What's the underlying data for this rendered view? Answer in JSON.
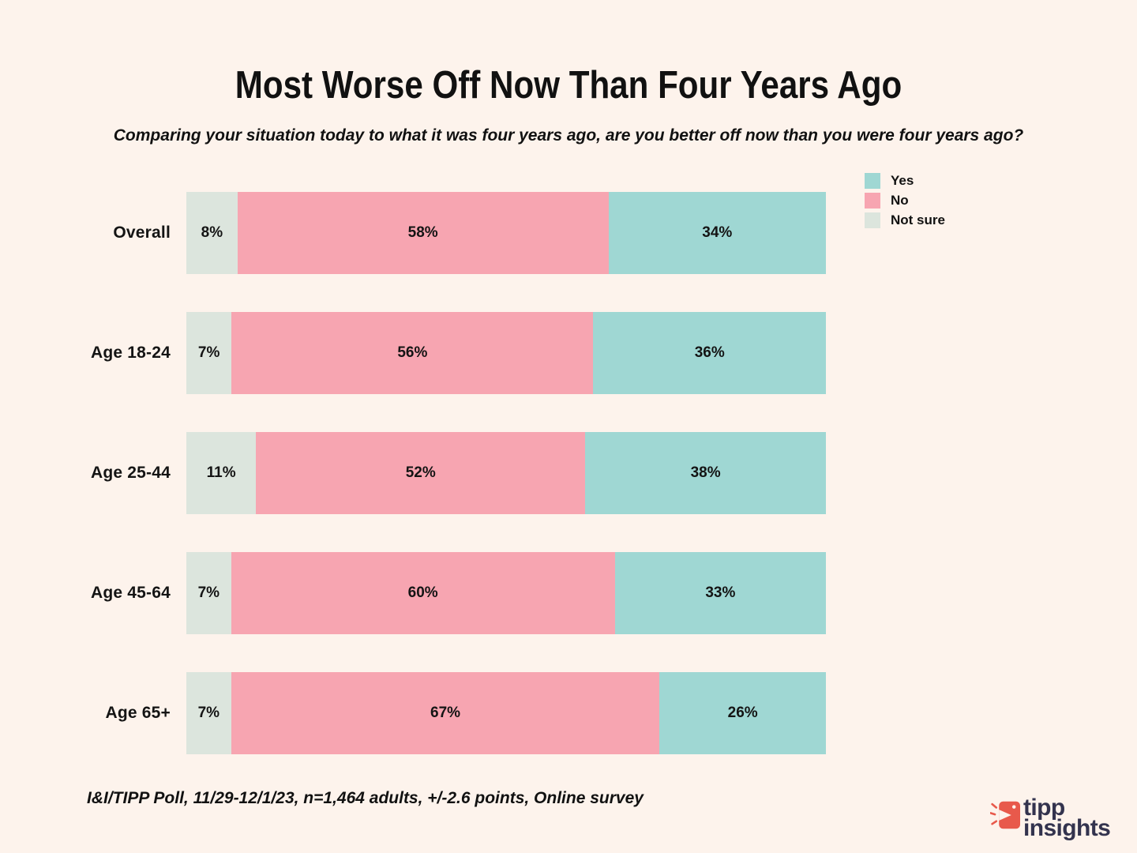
{
  "colors": {
    "background": "#fdf3ec",
    "text": "#111111",
    "bar_label": "#141414"
  },
  "chart_data": {
    "type": "bar",
    "orientation": "horizontal-stacked",
    "title": "Most Worse Off Now Than Four Years Ago",
    "subtitle": "Comparing your situation today to what it was four years ago, are you better off now than you were four years ago?",
    "source": "I&I/TIPP Poll, 11/29-12/1/23, n=1,464 adults, +/-2.6 points, Online survey",
    "categories": [
      "Overall",
      "Age 18-24",
      "Age 25-44",
      "Age 45-64",
      "Age 65+"
    ],
    "series": [
      {
        "name": "Not sure",
        "color": "#dce5dd",
        "values": [
          8,
          7,
          11,
          7,
          7
        ]
      },
      {
        "name": "No",
        "color": "#f7a5b1",
        "values": [
          58,
          56,
          52,
          60,
          67
        ]
      },
      {
        "name": "Yes",
        "color": "#9fd7d3",
        "values": [
          34,
          36,
          38,
          33,
          26
        ]
      }
    ],
    "value_suffix": "%",
    "segment_order_left_to_right": [
      "Not sure",
      "No",
      "Yes"
    ],
    "legend_position": "top-right",
    "grid": false,
    "xlim": [
      0,
      100
    ]
  },
  "legend": [
    {
      "label": "Yes",
      "color": "#9fd7d3"
    },
    {
      "label": "No",
      "color": "#f7a5b1"
    },
    {
      "label": "Not sure",
      "color": "#dce5dd"
    }
  ],
  "logo": {
    "line1": "tipp",
    "line2": "insights",
    "accent": "#e8594b",
    "text_color": "#33334e"
  }
}
